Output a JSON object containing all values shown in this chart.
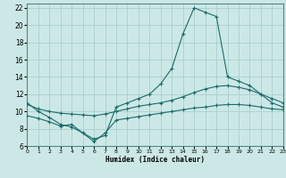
{
  "xlabel": "Humidex (Indice chaleur)",
  "bg_color": "#cce8e6",
  "grid_color": "#a8d0ce",
  "line_color": "#1a6b6b",
  "xlim": [
    0,
    23
  ],
  "ylim": [
    6,
    22.5
  ],
  "xticks": [
    0,
    1,
    2,
    3,
    4,
    5,
    6,
    7,
    8,
    9,
    10,
    11,
    12,
    13,
    14,
    15,
    16,
    17,
    18,
    19,
    20,
    21,
    22,
    23
  ],
  "yticks": [
    6,
    8,
    10,
    12,
    14,
    16,
    18,
    20,
    22
  ],
  "line1_x": [
    0,
    1,
    2,
    3,
    4,
    5,
    6,
    7,
    8,
    9,
    10,
    11,
    12,
    13,
    14,
    15,
    16,
    17,
    18,
    19,
    20,
    21,
    22,
    23
  ],
  "line1_y": [
    11.0,
    10.0,
    9.3,
    8.5,
    8.2,
    7.5,
    6.8,
    7.2,
    10.5,
    11.0,
    11.5,
    12.0,
    13.2,
    15.0,
    19.0,
    22.0,
    21.5,
    21.0,
    14.0,
    13.5,
    13.0,
    12.0,
    11.0,
    10.5
  ],
  "line2_x": [
    0,
    1,
    2,
    3,
    4,
    5,
    6,
    7,
    8,
    9,
    10,
    11,
    12,
    13,
    14,
    15,
    16,
    17,
    18,
    19,
    20,
    21,
    22,
    23
  ],
  "line2_y": [
    10.8,
    10.3,
    10.0,
    9.8,
    9.7,
    9.6,
    9.5,
    9.7,
    10.0,
    10.3,
    10.6,
    10.8,
    11.0,
    11.3,
    11.7,
    12.2,
    12.6,
    12.9,
    13.0,
    12.8,
    12.5,
    12.0,
    11.5,
    11.0
  ],
  "line3_x": [
    0,
    1,
    2,
    3,
    4,
    5,
    6,
    7,
    8,
    9,
    10,
    11,
    12,
    13,
    14,
    15,
    16,
    17,
    18,
    19,
    20,
    21,
    22,
    23
  ],
  "line3_y": [
    9.5,
    9.2,
    8.8,
    8.3,
    8.5,
    7.5,
    6.5,
    7.5,
    9.0,
    9.2,
    9.4,
    9.6,
    9.8,
    10.0,
    10.2,
    10.4,
    10.5,
    10.7,
    10.8,
    10.8,
    10.7,
    10.5,
    10.3,
    10.2
  ]
}
